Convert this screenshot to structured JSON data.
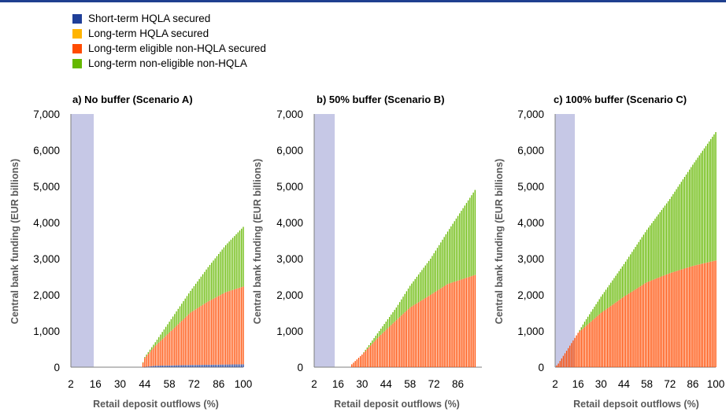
{
  "legend": [
    {
      "label": "Short-term HQLA secured",
      "color": "#1f3f98"
    },
    {
      "label": "Long-term HQLA secured",
      "color": "#ffb400"
    },
    {
      "label": "Long-term eligible non-HQLA secured",
      "color": "#ff4b00"
    },
    {
      "label": "Long-term non-eligible non-HQLA",
      "color": "#65b800"
    }
  ],
  "shade_color": "#c6c8e6",
  "chart_data": [
    {
      "type": "bar",
      "stacked": true,
      "title": "a) No buffer (Scenario A)",
      "xlabel": "Retail deposit outflows (%)",
      "ylabel": "Central bank funding (EUR billions)",
      "ylim": [
        0,
        7000
      ],
      "yticks": [
        "0",
        "1,000",
        "2,000",
        "3,000",
        "4,000",
        "5,000",
        "6,000",
        "7,000"
      ],
      "xlim": [
        2,
        100
      ],
      "xticks": [
        "2",
        "16",
        "30",
        "44",
        "58",
        "72",
        "86",
        "100"
      ],
      "shaded_region": [
        2,
        15
      ],
      "x_range": [
        2,
        100
      ],
      "onset": 43,
      "series": [
        {
          "name": "Short-term HQLA secured",
          "points": [
            [
              43,
              0
            ],
            [
              50,
              40
            ],
            [
              70,
              60
            ],
            [
              100,
              80
            ]
          ]
        },
        {
          "name": "Long-term HQLA secured",
          "points": [
            [
              43,
              0
            ],
            [
              100,
              0
            ]
          ]
        },
        {
          "name": "Long-term eligible non-HQLA secured",
          "points": [
            [
              42,
              0
            ],
            [
              44,
              250
            ],
            [
              50,
              550
            ],
            [
              60,
              1000
            ],
            [
              70,
              1450
            ],
            [
              80,
              1750
            ],
            [
              90,
              2000
            ],
            [
              100,
              2150
            ]
          ]
        },
        {
          "name": "Long-term non-eligible non-HQLA",
          "points": [
            [
              42,
              0
            ],
            [
              50,
              100
            ],
            [
              56,
              250
            ],
            [
              60,
              350
            ],
            [
              70,
              600
            ],
            [
              80,
              950
            ],
            [
              90,
              1300
            ],
            [
              100,
              1650
            ]
          ]
        }
      ]
    },
    {
      "type": "bar",
      "stacked": true,
      "title": "b) 50% buffer (Scenario B)",
      "xlabel": "Retail deposit outflows (%)",
      "ylabel": "Central bank funding (EUR billions)",
      "ylim": [
        0,
        7000
      ],
      "yticks": [
        "0",
        "1,000",
        "2,000",
        "3,000",
        "4,000",
        "5,000",
        "6,000",
        "7,000"
      ],
      "xlim": [
        2,
        100
      ],
      "xticks": [
        "2",
        "16",
        "30",
        "44",
        "58",
        "72",
        "86"
      ],
      "shaded_region": [
        2,
        14
      ],
      "x_range": [
        2,
        96
      ],
      "onset": 24,
      "series": [
        {
          "name": "Short-term HQLA secured",
          "points": [
            [
              24,
              0
            ],
            [
              96,
              0
            ]
          ]
        },
        {
          "name": "Long-term HQLA secured",
          "points": [
            [
              24,
              0
            ],
            [
              96,
              0
            ]
          ]
        },
        {
          "name": "Long-term eligible non-HQLA secured",
          "points": [
            [
              23,
              0
            ],
            [
              24,
              80
            ],
            [
              30,
              350
            ],
            [
              40,
              850
            ],
            [
              50,
              1300
            ],
            [
              58,
              1650
            ],
            [
              70,
              2000
            ],
            [
              80,
              2300
            ],
            [
              96,
              2550
            ]
          ]
        },
        {
          "name": "Long-term non-eligible non-HQLA",
          "points": [
            [
              23,
              0
            ],
            [
              30,
              0
            ],
            [
              40,
              150
            ],
            [
              50,
              350
            ],
            [
              58,
              600
            ],
            [
              70,
              1000
            ],
            [
              80,
              1450
            ],
            [
              96,
              2350
            ]
          ]
        }
      ]
    },
    {
      "type": "bar",
      "stacked": true,
      "title": "c) 100% buffer (Scenario C)",
      "xlabel": "Retail depsoit outflows (%)",
      "ylabel": "Central bank funding (EUR billions)",
      "ylim": [
        0,
        7000
      ],
      "yticks": [
        "0",
        "1,000",
        "2,000",
        "3,000",
        "4,000",
        "5,000",
        "6,000",
        "7,000"
      ],
      "xlim": [
        2,
        100
      ],
      "xticks": [
        "2",
        "16",
        "30",
        "44",
        "58",
        "72",
        "86",
        "100"
      ],
      "shaded_region": [
        2,
        14
      ],
      "x_range": [
        2,
        100
      ],
      "onset": 3,
      "series": [
        {
          "name": "Short-term HQLA secured",
          "points": [
            [
              3,
              0
            ],
            [
              100,
              0
            ]
          ]
        },
        {
          "name": "Long-term HQLA secured",
          "points": [
            [
              3,
              0
            ],
            [
              100,
              0
            ]
          ]
        },
        {
          "name": "Long-term eligible non-HQLA secured",
          "points": [
            [
              2,
              0
            ],
            [
              4,
              100
            ],
            [
              16,
              950
            ],
            [
              30,
              1500
            ],
            [
              44,
              1950
            ],
            [
              58,
              2350
            ],
            [
              72,
              2600
            ],
            [
              86,
              2800
            ],
            [
              100,
              2950
            ]
          ]
        },
        {
          "name": "Long-term non-eligible non-HQLA",
          "points": [
            [
              2,
              0
            ],
            [
              16,
              0
            ],
            [
              20,
              150
            ],
            [
              30,
              450
            ],
            [
              44,
              900
            ],
            [
              58,
              1450
            ],
            [
              72,
              2050
            ],
            [
              86,
              2800
            ],
            [
              100,
              3550
            ]
          ]
        }
      ]
    }
  ]
}
